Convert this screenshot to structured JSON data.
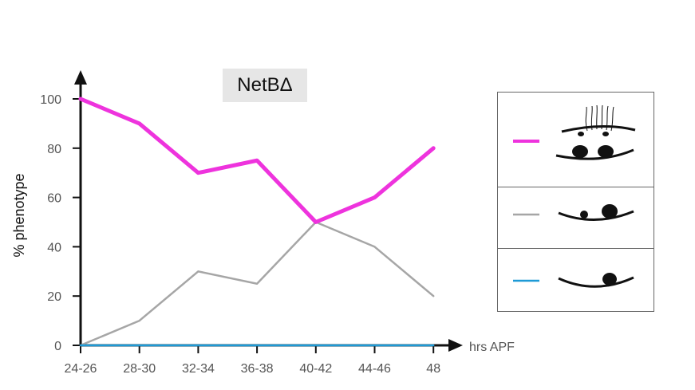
{
  "chart_data": {
    "type": "line",
    "title": "NetBΔ",
    "ylabel": "% phenotype",
    "xlabel": "hrs APF",
    "categories": [
      "24-26",
      "28-30",
      "32-34",
      "36-38",
      "40-42",
      "44-46",
      "48"
    ],
    "ylim": [
      0,
      100
    ],
    "yticks": [
      0,
      20,
      40,
      60,
      80,
      100
    ],
    "grid": false,
    "legend_placement": "right",
    "series": [
      {
        "color": "#ee33dd",
        "values": [
          100,
          90,
          70,
          75,
          50,
          60,
          80
        ],
        "legend_icon": "phenotype-full-icon"
      },
      {
        "color": "#a6a6a6",
        "values": [
          0,
          10,
          30,
          25,
          50,
          40,
          20
        ],
        "legend_icon": "phenotype-partial-icon"
      },
      {
        "color": "#1e9ad6",
        "values": [
          0,
          0,
          0,
          0,
          0,
          0,
          0
        ],
        "legend_icon": "phenotype-single-icon"
      }
    ]
  }
}
